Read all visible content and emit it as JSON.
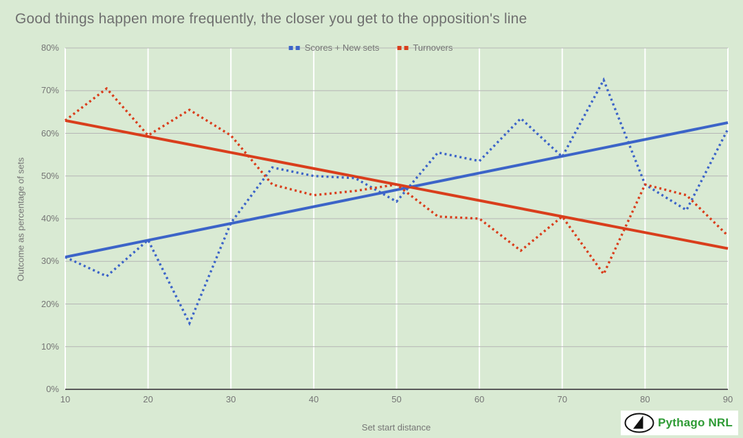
{
  "chart_data": {
    "type": "line",
    "title": "Good things happen more frequently, the closer you get to the opposition's line",
    "xlabel": "Set start distance",
    "ylabel": "Outcome as percentage of sets",
    "xlim": [
      10,
      90
    ],
    "ylim": [
      0,
      80
    ],
    "xticks": [
      "10",
      "20",
      "30",
      "40",
      "50",
      "60",
      "70",
      "80",
      "90"
    ],
    "yticks": [
      "0%",
      "10%",
      "20%",
      "30%",
      "40%",
      "50%",
      "60%",
      "70%",
      "80%"
    ],
    "grid": {
      "horizontal_color": "#b5b5b5",
      "vertical_color": "#ffffff",
      "baseline_color": "#595959"
    },
    "legend_position": "top-center",
    "background_color": "#d9ead3",
    "x": [
      10,
      15,
      20,
      25,
      30,
      35,
      40,
      45,
      50,
      55,
      60,
      65,
      70,
      75,
      80,
      85,
      90
    ],
    "series": [
      {
        "name": "Scores + New sets",
        "color": "#3c64c8",
        "style": "dotted",
        "values": [
          31,
          26.5,
          35,
          15.5,
          39,
          52,
          50,
          49.5,
          44,
          55.5,
          53.5,
          63.5,
          54.5,
          72.5,
          48,
          42,
          61
        ]
      },
      {
        "name": "Turnovers",
        "color": "#d93e1c",
        "style": "dotted",
        "values": [
          63,
          70.5,
          59.5,
          65.5,
          59.5,
          48,
          45.5,
          46.5,
          48,
          40.5,
          40,
          32.5,
          40.5,
          27,
          48,
          45.5,
          36
        ]
      }
    ],
    "trendlines": [
      {
        "series": "Scores + New sets",
        "color": "#3c64c8",
        "style": "solid",
        "x": [
          10,
          90
        ],
        "y": [
          31,
          62.5
        ]
      },
      {
        "series": "Turnovers",
        "color": "#d93e1c",
        "style": "solid",
        "x": [
          10,
          90
        ],
        "y": [
          63,
          33
        ]
      }
    ]
  },
  "watermark": {
    "text": "Pythago NRL",
    "text_color": "#2e9b35",
    "icon": "sail-ellipse-icon"
  }
}
